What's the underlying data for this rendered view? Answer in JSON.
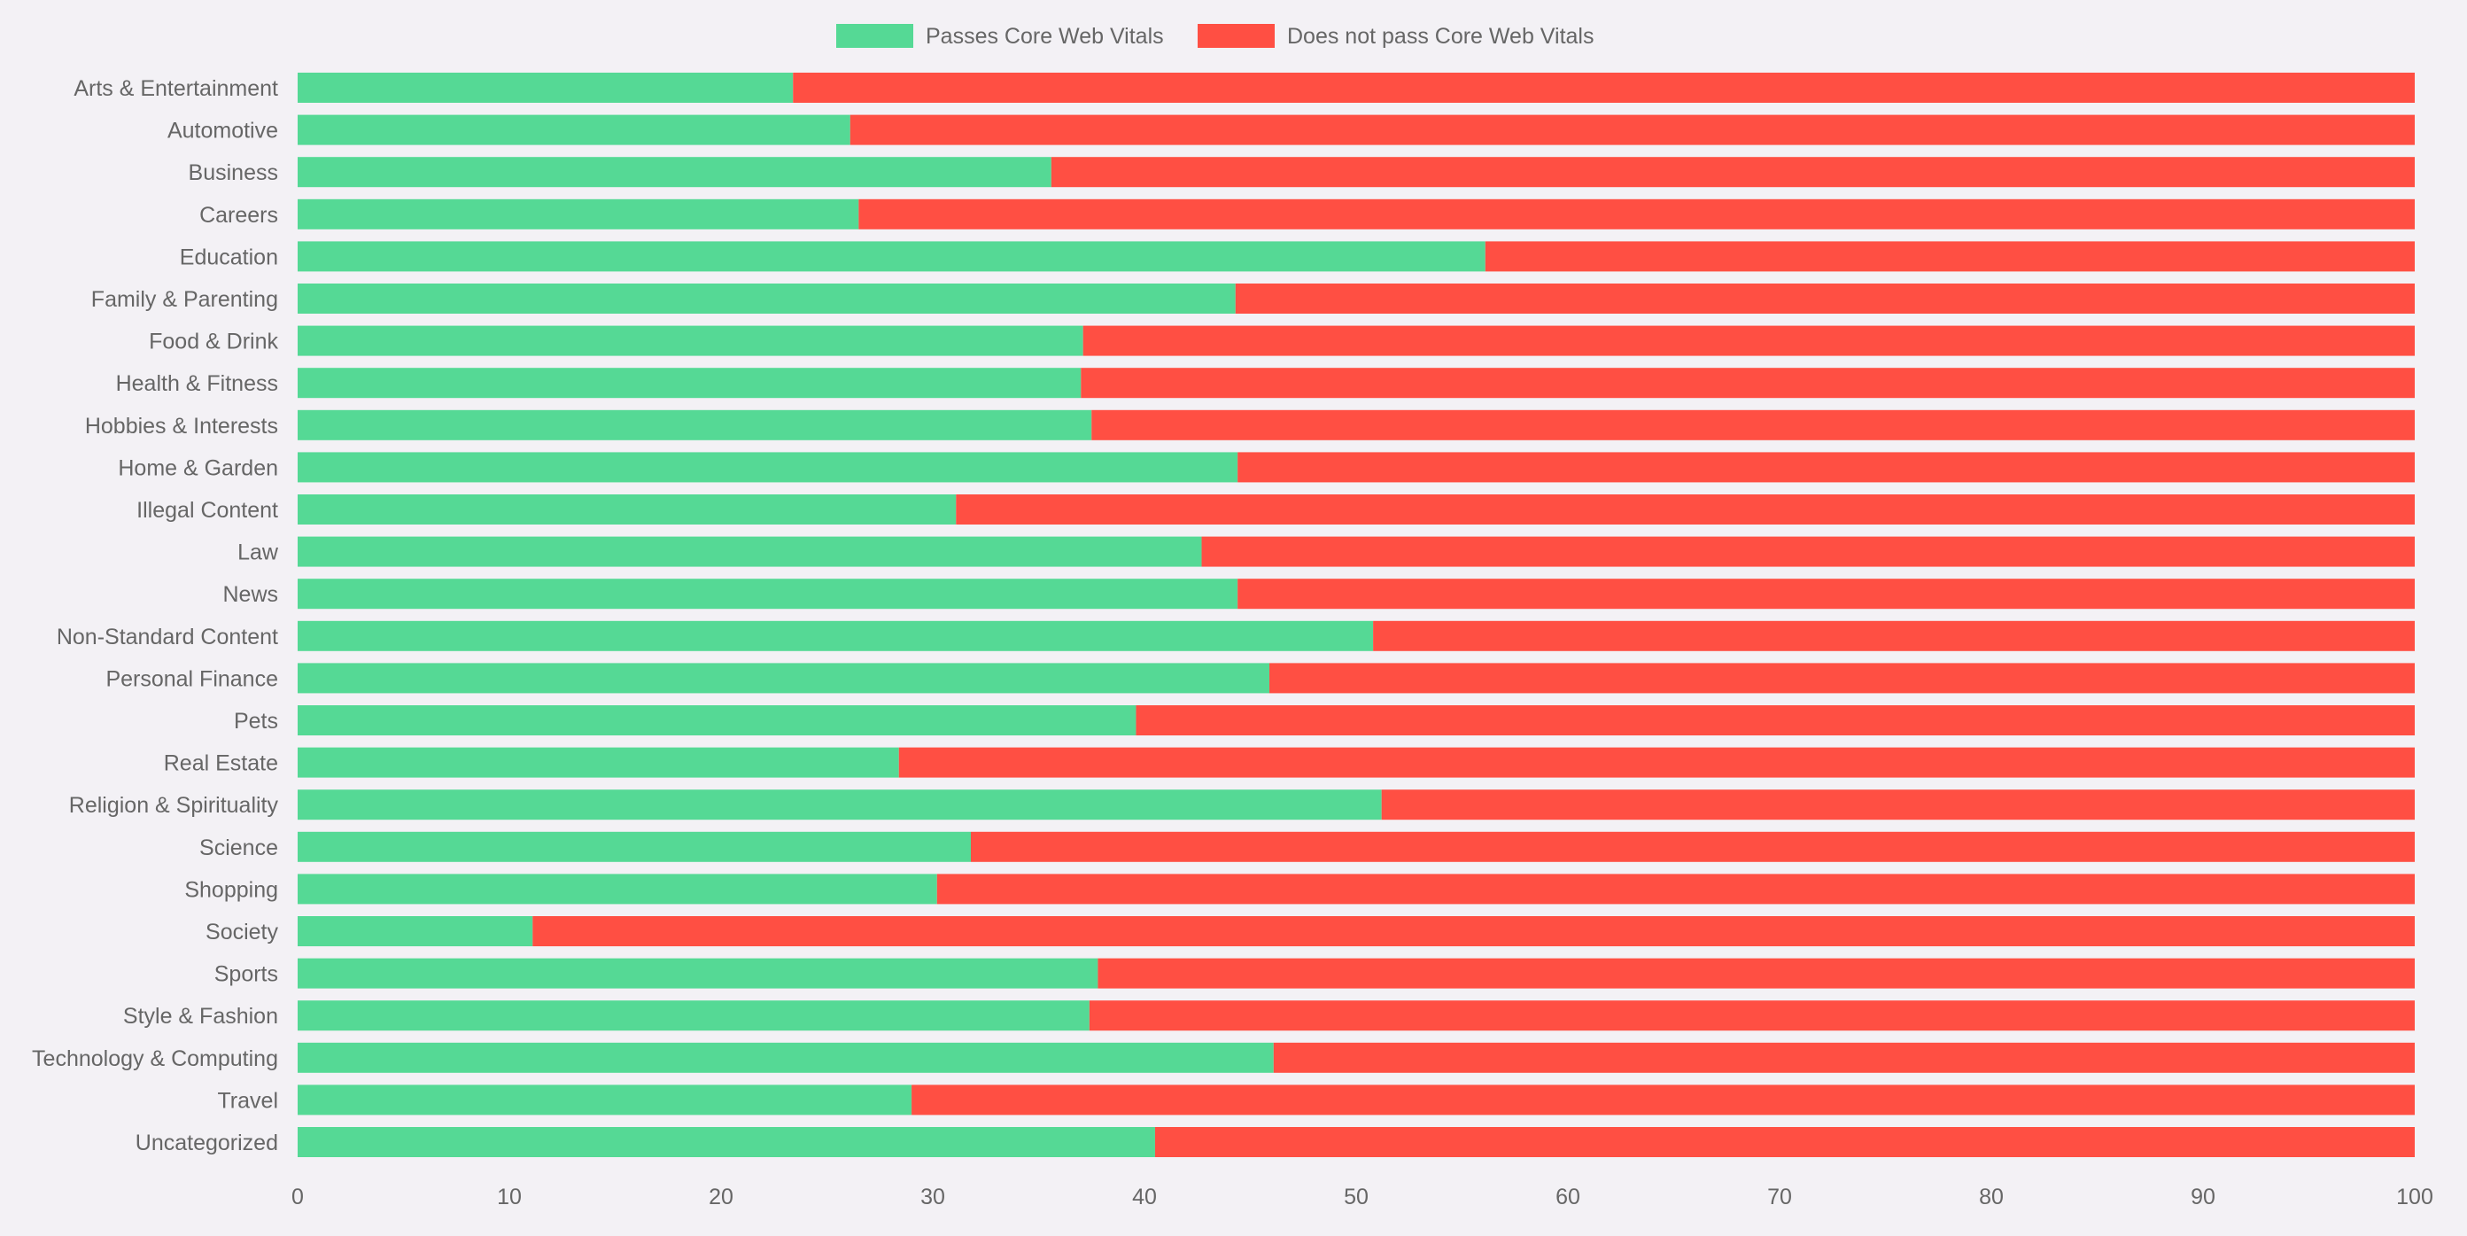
{
  "chart_data": {
    "type": "bar",
    "orientation": "horizontal",
    "stacked": true,
    "title": "",
    "xlabel": "",
    "ylabel": "",
    "xlim": [
      0,
      100
    ],
    "x_ticks": [
      "0",
      "10",
      "20",
      "30",
      "40",
      "50",
      "60",
      "70",
      "80",
      "90",
      "100"
    ],
    "grid": false,
    "legend_position": "top-center",
    "categories": [
      "Arts & Entertainment",
      "Automotive",
      "Business",
      "Careers",
      "Education",
      "Family & Parenting",
      "Food & Drink",
      "Health & Fitness",
      "Hobbies & Interests",
      "Home & Garden",
      "Illegal Content",
      "Law",
      "News",
      "Non-Standard Content",
      "Personal Finance",
      "Pets",
      "Real Estate",
      "Religion & Spirituality",
      "Science",
      "Shopping",
      "Society",
      "Sports",
      "Style & Fashion",
      "Technology & Computing",
      "Travel",
      "Uncategorized"
    ],
    "series": [
      {
        "name": "Passes Core Web Vitals",
        "color": "#55d995",
        "values": [
          23.4,
          26.1,
          35.6,
          26.5,
          56.1,
          44.3,
          37.1,
          37.0,
          37.5,
          44.4,
          31.1,
          42.7,
          44.4,
          50.8,
          45.9,
          39.6,
          28.4,
          51.2,
          31.8,
          30.2,
          11.1,
          37.8,
          37.4,
          46.1,
          29.0,
          40.5
        ]
      },
      {
        "name": "Does not pass Core Web Vitals",
        "color": "#ff4f43",
        "values": [
          76.6,
          73.9,
          64.4,
          73.5,
          43.9,
          55.7,
          62.9,
          63.0,
          62.5,
          55.6,
          68.9,
          57.3,
          55.6,
          49.2,
          54.1,
          60.4,
          71.6,
          48.8,
          68.2,
          69.8,
          88.9,
          62.2,
          62.6,
          53.9,
          71.0,
          59.5
        ]
      }
    ]
  }
}
